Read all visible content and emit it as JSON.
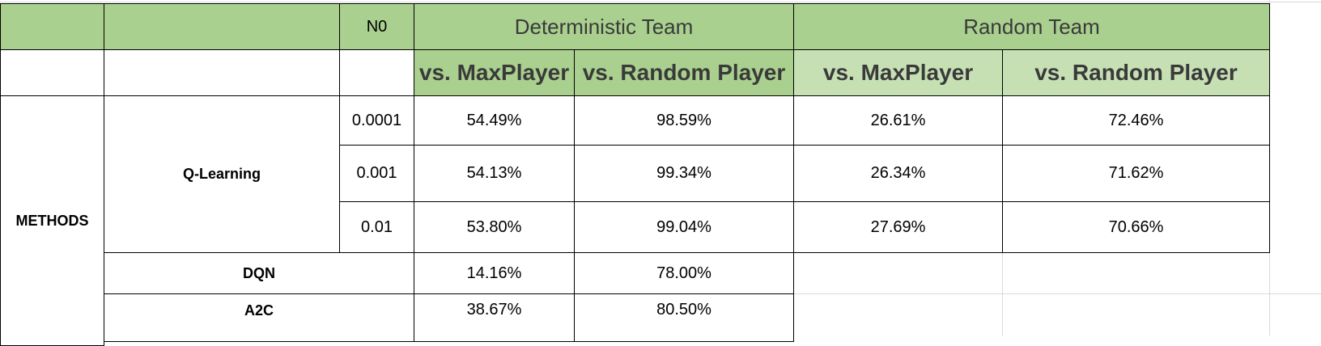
{
  "header": {
    "n0_label": "N0",
    "group_deterministic": "Deterministic Team",
    "group_random": "Random Team",
    "col_det_max": "vs. MaxPlayer",
    "col_det_rand": "vs. Random Player",
    "col_rand_max": "vs. MaxPlayer",
    "col_rand_rand": "vs. Random Player"
  },
  "methods_label": "METHODS",
  "rows": [
    {
      "method": "Q-Learning",
      "n0": "0.0001",
      "det_max": "54.49%",
      "det_rand": "98.59%",
      "rand_max": "26.61%",
      "rand_rand": "72.46%"
    },
    {
      "method": "",
      "n0": "0.001",
      "det_max": "54.13%",
      "det_rand": "99.34%",
      "rand_max": "26.34%",
      "rand_rand": "71.62%"
    },
    {
      "method": "",
      "n0": "0.01",
      "det_max": "53.80%",
      "det_rand": "99.04%",
      "rand_max": "27.69%",
      "rand_rand": "70.66%"
    },
    {
      "method": "DQN",
      "n0": "",
      "det_max": "14.16%",
      "det_rand": "78.00%",
      "rand_max": "",
      "rand_rand": ""
    },
    {
      "method": "A2C",
      "n0": "",
      "det_max": "38.67%",
      "det_rand": "80.50%",
      "rand_max": "",
      "rand_rand": ""
    }
  ],
  "colors": {
    "header_green": "#a9d08e",
    "subheader_green": "#c6e0b4"
  }
}
